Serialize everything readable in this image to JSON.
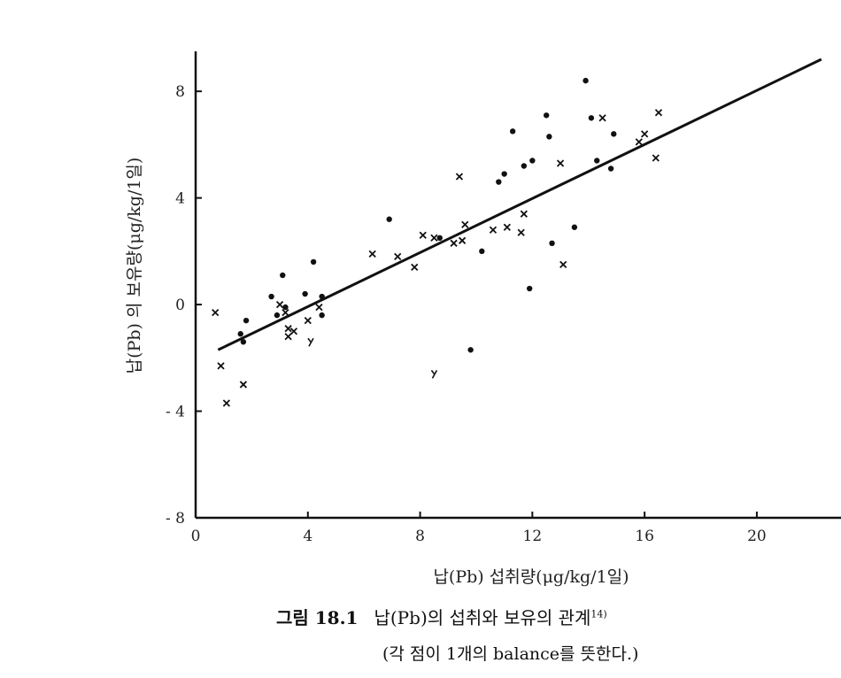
{
  "chart_data": {
    "type": "scatter",
    "xlabel": "납(Pb) 섭취량(μg/kg/1일)",
    "ylabel": "납(Pb) 의 보유량(μg/kg/1일)",
    "xlim": [
      0,
      23
    ],
    "ylim": [
      -8,
      9.5
    ],
    "x_ticks": [
      0,
      4,
      8,
      12,
      16,
      20
    ],
    "y_ticks": [
      8,
      4,
      0,
      -4,
      -8
    ],
    "x_tick_labels": [
      "0",
      "4",
      "8",
      "12",
      "16",
      "20"
    ],
    "y_tick_labels": [
      "8",
      "4",
      "0",
      "- 4",
      "- 8"
    ],
    "grid": false,
    "trend_line": {
      "x": [
        0.8,
        22.3
      ],
      "y": [
        -1.7,
        9.2
      ]
    },
    "points": [
      {
        "x": 0.7,
        "y": -0.3,
        "m": "x"
      },
      {
        "x": 0.9,
        "y": -2.3,
        "m": "x"
      },
      {
        "x": 1.1,
        "y": -3.7,
        "m": "x"
      },
      {
        "x": 1.6,
        "y": -1.1,
        "m": "o"
      },
      {
        "x": 1.7,
        "y": -1.4,
        "m": "o"
      },
      {
        "x": 1.8,
        "y": -0.6,
        "m": "o"
      },
      {
        "x": 1.7,
        "y": -3.0,
        "m": "x"
      },
      {
        "x": 2.7,
        "y": 0.3,
        "m": "o"
      },
      {
        "x": 2.9,
        "y": -0.4,
        "m": "o"
      },
      {
        "x": 3.0,
        "y": 0.0,
        "m": "x"
      },
      {
        "x": 3.1,
        "y": 1.1,
        "m": "o"
      },
      {
        "x": 3.2,
        "y": -0.1,
        "m": "o"
      },
      {
        "x": 3.3,
        "y": -0.9,
        "m": "x"
      },
      {
        "x": 3.3,
        "y": -1.2,
        "m": "x"
      },
      {
        "x": 3.5,
        "y": -1.0,
        "m": "x"
      },
      {
        "x": 3.2,
        "y": -0.3,
        "m": "x"
      },
      {
        "x": 3.9,
        "y": 0.4,
        "m": "o"
      },
      {
        "x": 4.0,
        "y": -0.6,
        "m": "x"
      },
      {
        "x": 4.2,
        "y": 1.6,
        "m": "o"
      },
      {
        "x": 4.4,
        "y": -0.1,
        "m": "x"
      },
      {
        "x": 4.5,
        "y": -0.4,
        "m": "o"
      },
      {
        "x": 4.5,
        "y": 0.3,
        "m": "o"
      },
      {
        "x": 6.3,
        "y": 1.9,
        "m": "x"
      },
      {
        "x": 6.9,
        "y": 3.2,
        "m": "o"
      },
      {
        "x": 7.2,
        "y": 1.8,
        "m": "x"
      },
      {
        "x": 7.8,
        "y": 1.4,
        "m": "x"
      },
      {
        "x": 8.1,
        "y": 2.6,
        "m": "x"
      },
      {
        "x": 8.5,
        "y": 2.5,
        "m": "x"
      },
      {
        "x": 8.7,
        "y": 2.5,
        "m": "o"
      },
      {
        "x": 9.2,
        "y": 2.3,
        "m": "x"
      },
      {
        "x": 9.4,
        "y": 4.8,
        "m": "x"
      },
      {
        "x": 9.5,
        "y": 2.4,
        "m": "x"
      },
      {
        "x": 9.6,
        "y": 3.0,
        "m": "x"
      },
      {
        "x": 9.8,
        "y": -1.7,
        "m": "o"
      },
      {
        "x": 10.2,
        "y": 2.0,
        "m": "o"
      },
      {
        "x": 10.6,
        "y": 2.8,
        "m": "x"
      },
      {
        "x": 10.8,
        "y": 4.6,
        "m": "o"
      },
      {
        "x": 11.0,
        "y": 4.9,
        "m": "o"
      },
      {
        "x": 11.1,
        "y": 2.9,
        "m": "x"
      },
      {
        "x": 11.3,
        "y": 6.5,
        "m": "o"
      },
      {
        "x": 11.6,
        "y": 2.7,
        "m": "x"
      },
      {
        "x": 11.7,
        "y": 5.2,
        "m": "o"
      },
      {
        "x": 11.7,
        "y": 3.4,
        "m": "x"
      },
      {
        "x": 11.9,
        "y": 0.6,
        "m": "o"
      },
      {
        "x": 12.0,
        "y": 5.4,
        "m": "o"
      },
      {
        "x": 12.5,
        "y": 7.1,
        "m": "o"
      },
      {
        "x": 12.6,
        "y": 6.3,
        "m": "o"
      },
      {
        "x": 12.7,
        "y": 2.3,
        "m": "o"
      },
      {
        "x": 13.0,
        "y": 5.3,
        "m": "x"
      },
      {
        "x": 13.1,
        "y": 1.5,
        "m": "x"
      },
      {
        "x": 13.5,
        "y": 2.9,
        "m": "o"
      },
      {
        "x": 13.9,
        "y": 8.4,
        "m": "o"
      },
      {
        "x": 14.1,
        "y": 7.0,
        "m": "o"
      },
      {
        "x": 14.3,
        "y": 5.4,
        "m": "o"
      },
      {
        "x": 14.5,
        "y": 7.0,
        "m": "x"
      },
      {
        "x": 14.8,
        "y": 5.1,
        "m": "o"
      },
      {
        "x": 14.9,
        "y": 6.4,
        "m": "o"
      },
      {
        "x": 15.8,
        "y": 6.1,
        "m": "x"
      },
      {
        "x": 16.0,
        "y": 6.4,
        "m": "x"
      },
      {
        "x": 16.4,
        "y": 5.5,
        "m": "x"
      },
      {
        "x": 16.5,
        "y": 7.2,
        "m": "x"
      },
      {
        "x": 8.5,
        "y": -2.6,
        "m": "y"
      },
      {
        "x": 4.1,
        "y": -1.4,
        "m": "y"
      }
    ]
  },
  "caption": {
    "label": "그림 18.1",
    "text": "납(Pb)의 섭취와 보유의 관계",
    "ref": "14)",
    "note": "(각 점이 1개의 balance를 뜻한다.)"
  }
}
